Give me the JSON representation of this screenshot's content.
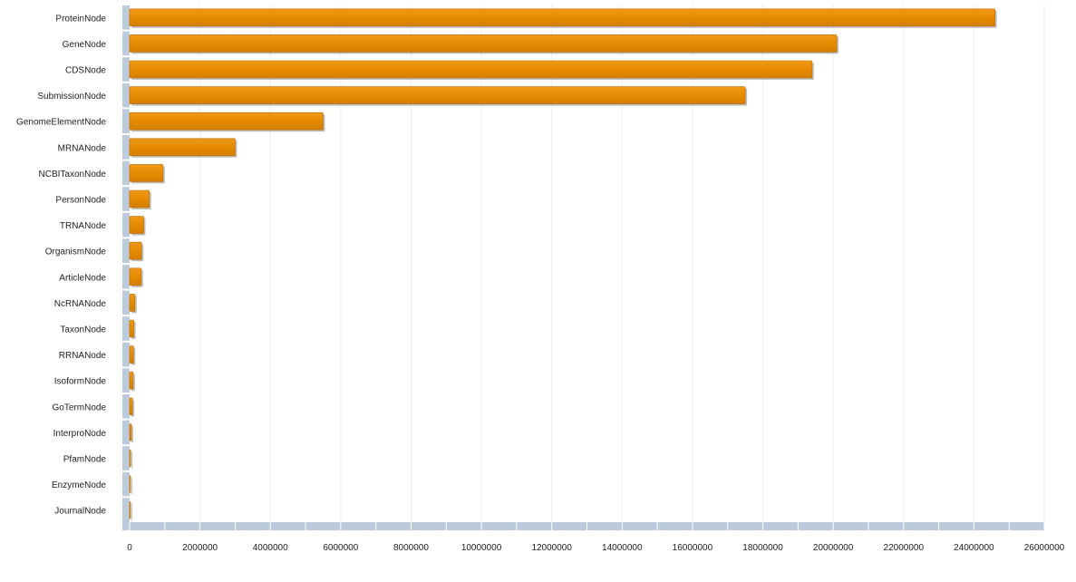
{
  "chart_data": {
    "type": "bar",
    "orientation": "horizontal",
    "categories": [
      "ProteinNode",
      "GeneNode",
      "CDSNode",
      "SubmissionNode",
      "GenomeElementNode",
      "MRNANode",
      "NCBITaxonNode",
      "PersonNode",
      "TRNANode",
      "OrganismNode",
      "ArticleNode",
      "NcRNANode",
      "TaxonNode",
      "RRNANode",
      "IsoformNode",
      "GoTermNode",
      "InterproNode",
      "PfamNode",
      "EnzymeNode",
      "JournalNode"
    ],
    "values": [
      24600000,
      20100000,
      19400000,
      17500000,
      5500000,
      3000000,
      950000,
      560000,
      400000,
      340000,
      330000,
      150000,
      120000,
      110000,
      100000,
      80000,
      50000,
      30000,
      10000,
      5000
    ],
    "xlim": [
      0,
      26000000
    ],
    "x_ticks": [
      "0",
      "2000000",
      "4000000",
      "6000000",
      "8000000",
      "10000000",
      "12000000",
      "14000000",
      "16000000",
      "18000000",
      "20000000",
      "22000000",
      "24000000",
      "26000000"
    ],
    "x_tick_values": [
      0,
      2000000,
      4000000,
      6000000,
      8000000,
      10000000,
      12000000,
      14000000,
      16000000,
      18000000,
      20000000,
      22000000,
      24000000,
      26000000
    ],
    "title": "",
    "xlabel": "",
    "ylabel": "",
    "grid": "vertical",
    "legend": "none",
    "colors": {
      "bar": "#e68a00",
      "bar_edge": "#b96d00",
      "bar_shadow": "#8a8a8a",
      "axis": "#bccbdb",
      "axis_tick": "#ffffff",
      "grid": "#eeeeee",
      "text": "#222222"
    }
  }
}
